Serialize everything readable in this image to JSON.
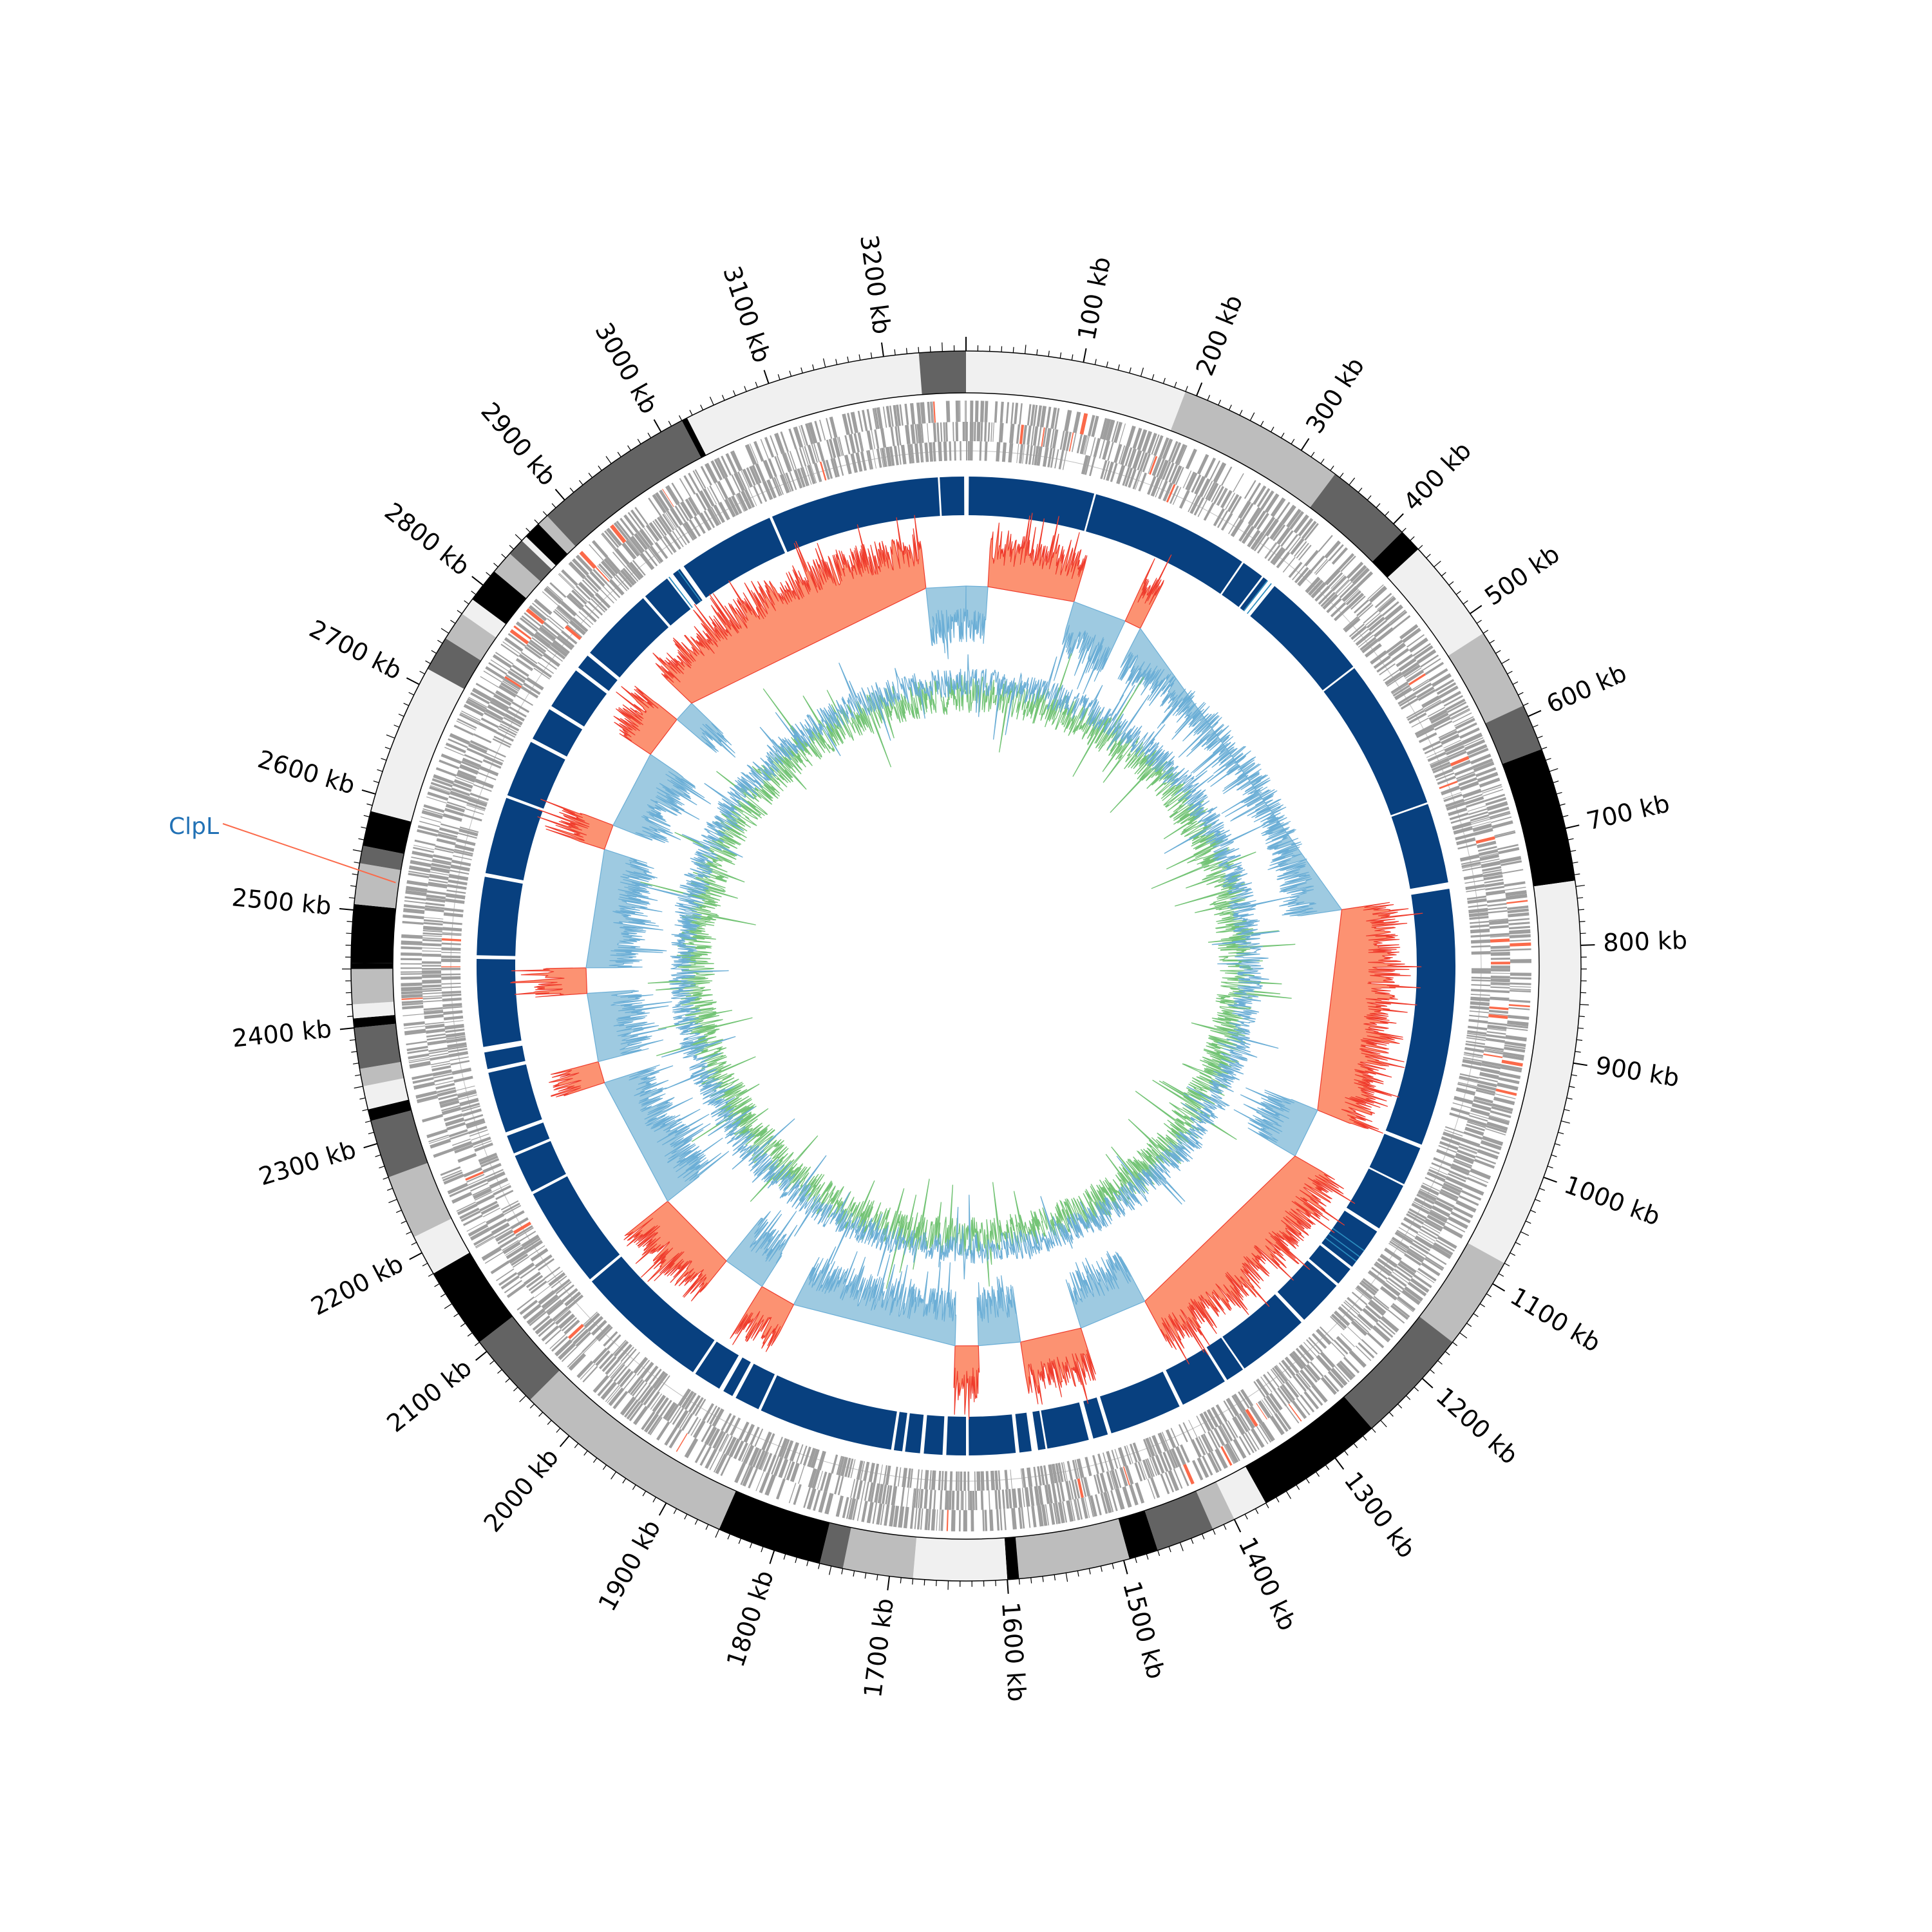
{
  "chart_data": {
    "type": "circular-genome",
    "genome_length_kb": 3270,
    "colors": {
      "band_levels": [
        "#f0f0f0",
        "#bdbdbd",
        "#636363",
        "#000000"
      ],
      "orf_grey": "#9e9e9e",
      "orf_red": "#fb6a4a",
      "contig_blue": "#08407f",
      "contig_light_blue": "#2b8cbe",
      "skew_positive": "#9ecae1",
      "skew_positive_line": "#6baed6",
      "skew_negative": "#fc9272",
      "skew_negative_line": "#ef3b2c",
      "gc_blue": "#6baed6",
      "gc_green": "#74c476",
      "label_blue": "#2171b5",
      "label_line_red": "#fb6a4a"
    },
    "tick_labels": [
      {
        "kb": 100,
        "text": "100 kb"
      },
      {
        "kb": 200,
        "text": "200 kb"
      },
      {
        "kb": 300,
        "text": "300 kb"
      },
      {
        "kb": 400,
        "text": "400 kb"
      },
      {
        "kb": 500,
        "text": "500 kb"
      },
      {
        "kb": 600,
        "text": "600 kb"
      },
      {
        "kb": 700,
        "text": "700 kb"
      },
      {
        "kb": 800,
        "text": "800 kb"
      },
      {
        "kb": 900,
        "text": "900 kb"
      },
      {
        "kb": 1000,
        "text": "1000 kb"
      },
      {
        "kb": 1100,
        "text": "1100 kb"
      },
      {
        "kb": 1200,
        "text": "1200 kb"
      },
      {
        "kb": 1300,
        "text": "1300 kb"
      },
      {
        "kb": 1400,
        "text": "1400 kb"
      },
      {
        "kb": 1500,
        "text": "1500 kb"
      },
      {
        "kb": 1600,
        "text": "1600 kb"
      },
      {
        "kb": 1700,
        "text": "1700 kb"
      },
      {
        "kb": 1800,
        "text": "1800 kb"
      },
      {
        "kb": 1900,
        "text": "1900 kb"
      },
      {
        "kb": 2000,
        "text": "2000 kb"
      },
      {
        "kb": 2100,
        "text": "2100 kb"
      },
      {
        "kb": 2200,
        "text": "2200 kb"
      },
      {
        "kb": 2300,
        "text": "2300 kb"
      },
      {
        "kb": 2400,
        "text": "2400 kb"
      },
      {
        "kb": 2500,
        "text": "2500 kb"
      },
      {
        "kb": 2600,
        "text": "2600 kb"
      },
      {
        "kb": 2700,
        "text": "2700 kb"
      },
      {
        "kb": 2800,
        "text": "2800 kb"
      },
      {
        "kb": 2900,
        "text": "2900 kb"
      },
      {
        "kb": 3000,
        "text": "3000 kb"
      },
      {
        "kb": 3100,
        "text": "3100 kb"
      },
      {
        "kb": 3200,
        "text": "3200 kb"
      }
    ],
    "bands": [
      {
        "start": 0,
        "end": 190,
        "level": 0
      },
      {
        "start": 190,
        "end": 335,
        "level": 1
      },
      {
        "start": 335,
        "end": 410,
        "level": 2
      },
      {
        "start": 410,
        "end": 430,
        "level": 3
      },
      {
        "start": 430,
        "end": 520,
        "level": 0
      },
      {
        "start": 520,
        "end": 590,
        "level": 1
      },
      {
        "start": 590,
        "end": 630,
        "level": 2
      },
      {
        "start": 630,
        "end": 745,
        "level": 3
      },
      {
        "start": 745,
        "end": 1080,
        "level": 0
      },
      {
        "start": 1080,
        "end": 1160,
        "level": 1
      },
      {
        "start": 1160,
        "end": 1260,
        "level": 2
      },
      {
        "start": 1260,
        "end": 1370,
        "level": 3
      },
      {
        "start": 1370,
        "end": 1400,
        "level": 0
      },
      {
        "start": 1400,
        "end": 1420,
        "level": 1
      },
      {
        "start": 1420,
        "end": 1470,
        "level": 2
      },
      {
        "start": 1470,
        "end": 1495,
        "level": 3
      },
      {
        "start": 1495,
        "end": 1590,
        "level": 1
      },
      {
        "start": 1590,
        "end": 1600,
        "level": 3
      },
      {
        "start": 1600,
        "end": 1680,
        "level": 0
      },
      {
        "start": 1680,
        "end": 1740,
        "level": 1
      },
      {
        "start": 1740,
        "end": 1760,
        "level": 2
      },
      {
        "start": 1760,
        "end": 1850,
        "level": 3
      },
      {
        "start": 1850,
        "end": 2045,
        "level": 1
      },
      {
        "start": 2045,
        "end": 2110,
        "level": 2
      },
      {
        "start": 2110,
        "end": 2180,
        "level": 3
      },
      {
        "start": 2180,
        "end": 2215,
        "level": 0
      },
      {
        "start": 2215,
        "end": 2270,
        "level": 1
      },
      {
        "start": 2270,
        "end": 2320,
        "level": 2
      },
      {
        "start": 2320,
        "end": 2330,
        "level": 3
      },
      {
        "start": 2330,
        "end": 2350,
        "level": 0
      },
      {
        "start": 2350,
        "end": 2365,
        "level": 1
      },
      {
        "start": 2365,
        "end": 2400,
        "level": 2
      },
      {
        "start": 2400,
        "end": 2408,
        "level": 3
      },
      {
        "start": 2408,
        "end": 2420,
        "level": 0
      },
      {
        "start": 2420,
        "end": 2450,
        "level": 1
      },
      {
        "start": 2450,
        "end": 2455,
        "level": 3
      },
      {
        "start": 2455,
        "end": 2505,
        "level": 3
      },
      {
        "start": 2505,
        "end": 2540,
        "level": 1
      },
      {
        "start": 2540,
        "end": 2555,
        "level": 2
      },
      {
        "start": 2555,
        "end": 2585,
        "level": 3
      },
      {
        "start": 2585,
        "end": 2715,
        "level": 0
      },
      {
        "start": 2715,
        "end": 2745,
        "level": 2
      },
      {
        "start": 2745,
        "end": 2770,
        "level": 1
      },
      {
        "start": 2770,
        "end": 2785,
        "level": 0
      },
      {
        "start": 2785,
        "end": 2815,
        "level": 3
      },
      {
        "start": 2815,
        "end": 2835,
        "level": 1
      },
      {
        "start": 2835,
        "end": 2850,
        "level": 2
      },
      {
        "start": 2850,
        "end": 2855,
        "level": 0
      },
      {
        "start": 2855,
        "end": 2870,
        "level": 3
      },
      {
        "start": 2870,
        "end": 2880,
        "level": 1
      },
      {
        "start": 2880,
        "end": 3020,
        "level": 2
      },
      {
        "start": 3020,
        "end": 3025,
        "level": 3
      },
      {
        "start": 3025,
        "end": 3230,
        "level": 0
      },
      {
        "start": 3230,
        "end": 3270,
        "level": 2
      }
    ],
    "contigs": [
      [
        3,
        138
      ],
      [
        140,
        312
      ],
      [
        314,
        338
      ],
      [
        340,
        345
      ],
      [
        355,
        475
      ],
      [
        477,
        640
      ],
      [
        642,
        728
      ],
      [
        735,
        1012
      ],
      [
        1016,
        1058
      ],
      [
        1060,
        1112
      ],
      [
        1116,
        1162
      ],
      [
        1165,
        1185
      ],
      [
        1188,
        1238
      ],
      [
        1242,
        1320
      ],
      [
        1322,
        1342
      ],
      [
        1345,
        1396
      ],
      [
        1400,
        1478
      ],
      [
        1482,
        1498
      ],
      [
        1503,
        1548
      ],
      [
        1550,
        1558
      ],
      [
        1565,
        1578
      ],
      [
        1582,
        1632
      ],
      [
        1635,
        1656
      ],
      [
        1660,
        1680
      ],
      [
        1684,
        1700
      ],
      [
        1703,
        1712
      ],
      [
        1715,
        1860
      ],
      [
        1863,
        1890
      ],
      [
        1894,
        1905
      ],
      [
        1910,
        1940
      ],
      [
        1943,
        2088
      ],
      [
        2091,
        2200
      ],
      [
        2203,
        2245
      ],
      [
        2248,
        2268
      ],
      [
        2272,
        2338
      ],
      [
        2342,
        2360
      ],
      [
        2366,
        2460
      ],
      [
        2464,
        2548
      ],
      [
        2552,
        2635
      ],
      [
        2638,
        2700
      ],
      [
        2704,
        2740
      ],
      [
        2744,
        2790
      ],
      [
        2794,
        2810
      ],
      [
        2814,
        2895
      ],
      [
        2898,
        2928
      ],
      [
        2936,
        2945
      ],
      [
        2950,
        3055
      ],
      [
        3058,
        3240
      ],
      [
        3242,
        3268
      ]
    ],
    "contig_marks_light": [
      345,
      350,
      1140,
      1148,
      1154,
      2942,
      2930
    ],
    "skew_regions": [
      {
        "start": 0,
        "end": 30,
        "sign": 1
      },
      {
        "start": 30,
        "end": 150,
        "sign": -1
      },
      {
        "start": 150,
        "end": 225,
        "sign": 1
      },
      {
        "start": 225,
        "end": 248,
        "sign": -1
      },
      {
        "start": 248,
        "end": 740,
        "sign": 1
      },
      {
        "start": 740,
        "end": 1020,
        "sign": -1
      },
      {
        "start": 1020,
        "end": 1090,
        "sign": 1
      },
      {
        "start": 1090,
        "end": 1380,
        "sign": -1
      },
      {
        "start": 1380,
        "end": 1475,
        "sign": 1
      },
      {
        "start": 1475,
        "end": 1560,
        "sign": -1
      },
      {
        "start": 1560,
        "end": 1618,
        "sign": 1
      },
      {
        "start": 1618,
        "end": 1650,
        "sign": -1
      },
      {
        "start": 1650,
        "end": 1880,
        "sign": 1
      },
      {
        "start": 1880,
        "end": 1930,
        "sign": -1
      },
      {
        "start": 1930,
        "end": 1990,
        "sign": 1
      },
      {
        "start": 1990,
        "end": 2105,
        "sign": -1
      },
      {
        "start": 2105,
        "end": 2290,
        "sign": 1
      },
      {
        "start": 2290,
        "end": 2320,
        "sign": -1
      },
      {
        "start": 2320,
        "end": 2415,
        "sign": 1
      },
      {
        "start": 2415,
        "end": 2450,
        "sign": -1
      },
      {
        "start": 2450,
        "end": 2615,
        "sign": 1
      },
      {
        "start": 2615,
        "end": 2650,
        "sign": -1
      },
      {
        "start": 2650,
        "end": 2760,
        "sign": 1
      },
      {
        "start": 2760,
        "end": 2820,
        "sign": -1
      },
      {
        "start": 2820,
        "end": 2850,
        "sign": 1
      },
      {
        "start": 2850,
        "end": 3215,
        "sign": -1
      },
      {
        "start": 3215,
        "end": 3270,
        "sign": 1
      }
    ],
    "highlight": {
      "kb": 2528,
      "label": "ClpL"
    }
  }
}
